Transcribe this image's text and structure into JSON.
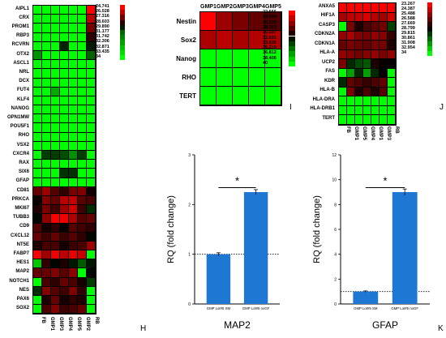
{
  "colors": {
    "green": "#00ff00",
    "red": "#ff0000",
    "black": "#000000",
    "bar": "#1f77d4"
  },
  "chart_data": [
    {
      "panel": "H",
      "type": "heatmap",
      "rows": [
        "AIPL1",
        "CRX",
        "PROM1",
        "RBP3",
        "RCVRN",
        "OTX2",
        "ASCL1",
        "NRL",
        "DCX",
        "FUT4",
        "KLF4",
        "NANOG",
        "OPN1MW",
        "POU5F1",
        "RHO",
        "VSX2",
        "CXCR4",
        "RAX",
        "SIX6",
        "GFAP",
        "CD81",
        "PRKCA",
        "MKI67",
        "TUBB3",
        "CD9",
        "CXCL12",
        "NT5E",
        "FABP7",
        "HES1",
        "MAP2",
        "NOTCH1",
        "NES",
        "PAX6",
        "SOX2"
      ],
      "columns": [
        "FB",
        "GMP1",
        "GMP3",
        "GMP4",
        "GMP5",
        "GMP2",
        "RB"
      ],
      "values": [
        [
          34,
          34,
          34,
          34,
          34,
          34,
          24.741
        ],
        [
          34,
          34,
          34,
          34,
          34,
          34,
          26.028
        ],
        [
          34,
          34,
          34,
          34,
          34,
          34,
          27.316
        ],
        [
          34,
          34,
          34,
          34,
          34,
          34,
          28.603
        ],
        [
          34,
          34,
          34,
          30.0,
          34,
          34,
          29.89
        ],
        [
          32.0,
          34,
          34,
          34,
          34,
          34,
          31.177
        ],
        [
          34,
          34,
          34,
          34,
          34,
          34,
          34
        ],
        [
          34,
          34,
          34,
          34,
          34,
          34,
          34
        ],
        [
          34,
          34,
          34,
          34,
          34,
          34,
          34
        ],
        [
          34,
          34,
          32.5,
          34,
          34,
          34,
          34
        ],
        [
          34,
          34,
          34,
          34,
          34,
          34,
          34
        ],
        [
          34,
          34,
          34,
          34,
          34,
          34,
          34
        ],
        [
          34,
          34,
          34,
          34,
          34,
          34,
          34
        ],
        [
          34,
          34,
          34,
          34,
          34,
          34,
          34
        ],
        [
          34,
          34,
          34,
          34,
          34,
          34,
          34
        ],
        [
          34,
          34,
          34,
          34,
          34,
          34,
          34
        ],
        [
          34,
          30.5,
          30.5,
          30.8,
          32.0,
          30.5,
          34
        ],
        [
          34,
          34,
          34,
          34,
          34,
          34,
          34
        ],
        [
          34,
          34,
          34,
          30.3,
          30.3,
          34,
          34
        ],
        [
          34,
          34,
          34,
          34,
          34,
          34,
          34
        ],
        [
          27.5,
          26.5,
          27.8,
          28.5,
          27.2,
          27.0,
          29.0
        ],
        [
          29.2,
          27.0,
          27.5,
          26.0,
          25.8,
          27.8,
          28.0
        ],
        [
          28.8,
          27.2,
          28.2,
          26.5,
          25.5,
          28.3,
          30.2
        ],
        [
          29.5,
          26.8,
          24.8,
          25.0,
          26.2,
          27.8,
          27.5
        ],
        [
          27.8,
          29.0,
          28.5,
          29.3,
          27.8,
          28.2,
          28.5
        ],
        [
          27.5,
          28.2,
          27.5,
          28.3,
          27.8,
          28.5,
          29.5
        ],
        [
          28.8,
          28.0,
          28.0,
          29.0,
          28.3,
          28.0,
          26.5
        ],
        [
          24.8,
          26.5,
          25.0,
          26.0,
          25.2,
          25.8,
          34
        ],
        [
          33.0,
          28.5,
          29.5,
          28.8,
          29.8,
          31.0,
          29.8
        ],
        [
          27.5,
          27.5,
          27.0,
          27.8,
          26.8,
          34,
          29.5
        ],
        [
          34,
          28.0,
          28.5,
          27.5,
          28.0,
          29.0,
          30.5
        ],
        [
          30.2,
          27.0,
          27.8,
          28.3,
          27.0,
          28.5,
          34
        ],
        [
          34,
          28.8,
          27.5,
          29.0,
          28.5,
          28.8,
          34
        ],
        [
          34,
          28.0,
          27.0,
          28.3,
          28.0,
          27.5,
          34
        ]
      ],
      "legend": [
        "24.741",
        "26.028",
        "27.316",
        "28.603",
        "29.890",
        "31.177",
        "31.742",
        "32.306",
        "32.871",
        "33.435",
        "34"
      ]
    },
    {
      "panel": "I",
      "type": "heatmap",
      "rows": [
        "Nestin",
        "Sox2",
        "Nanog",
        "RHO",
        "TERT"
      ],
      "columns": [
        "GMP1",
        "GMP2",
        "GMP3",
        "GMP4",
        "GMP5"
      ],
      "values": [
        [
          22.666,
          26.0,
          27.2,
          28.0,
          28.6
        ],
        [
          25.5,
          25.0,
          25.6,
          25.2,
          25.3
        ],
        [
          40,
          40,
          40,
          40,
          40
        ],
        [
          40,
          40,
          40,
          40,
          40
        ],
        [
          40,
          40,
          40,
          40,
          40
        ]
      ],
      "legend": [
        "22.666",
        "24.694",
        "26.528",
        "28.363",
        "30.197",
        "32.031",
        "33.625",
        "35.219",
        "36.812",
        "38.406",
        "40"
      ]
    },
    {
      "panel": "J",
      "type": "heatmap",
      "rows": [
        "ANXA5",
        "HIF1A",
        "CASP3",
        "CDKN2A",
        "CDKN1A",
        "HLA-A",
        "UCP2",
        "FAS",
        "KDR",
        "HLA-B",
        "HLA-DRA",
        "HLA-DRB1",
        "TERT"
      ],
      "columns": [
        "FB",
        "GMP1",
        "GMP5",
        "GMP4",
        "GMP1",
        "GMP3",
        "RB"
      ],
      "values": [
        [
          23.3,
          23.3,
          23.3,
          23.3,
          23.3,
          23.3,
          23.3
        ],
        [
          25.0,
          24.5,
          24.5,
          24.0,
          24.8,
          25.2,
          24.2
        ],
        [
          34,
          26.0,
          28.0,
          27.0,
          26.5,
          26.2,
          30.0
        ],
        [
          25.5,
          25.0,
          25.8,
          26.0,
          25.5,
          25.8,
          27.5
        ],
        [
          26.5,
          26.0,
          26.3,
          26.5,
          26.0,
          26.2,
          28.0
        ],
        [
          25.5,
          25.8,
          26.2,
          25.8,
          25.5,
          26.0,
          25.5
        ],
        [
          26.0,
          29.5,
          30.2,
          30.5,
          28.0,
          28.5,
          28.5
        ],
        [
          34,
          32.0,
          29.5,
          32.0,
          29.5,
          28.5,
          34
        ],
        [
          29.5,
          26.5,
          27.0,
          27.5,
          27.0,
          26.5,
          34
        ],
        [
          34,
          26.0,
          28.0,
          27.0,
          28.0,
          26.8,
          34
        ],
        [
          34,
          34,
          34,
          34,
          34,
          34,
          34
        ],
        [
          34,
          34,
          34,
          34,
          34,
          34,
          34
        ],
        [
          34,
          34,
          34,
          34,
          34,
          34,
          34
        ]
      ],
      "legend": [
        "23.267",
        "24.387",
        "25.488",
        "26.588",
        "27.669",
        "28.799",
        "29.815",
        "30.861",
        "31.908",
        "32.954",
        "34"
      ]
    },
    {
      "panel": "K-MAP2",
      "type": "bar",
      "categories": [
        "GMP Lot#5 SM",
        "GMP Lot#5 noGF"
      ],
      "values": [
        1.0,
        2.25
      ],
      "errors": [
        0.03,
        0.05
      ],
      "xlabel": "MAP2",
      "ylabel": "RQ (fold change)",
      "yticks": [
        "0",
        "1",
        "2",
        "3"
      ],
      "ylim": [
        0,
        3
      ],
      "significance": "*"
    },
    {
      "panel": "K-GFAP",
      "type": "bar",
      "categories": [
        "GMP Lot#5 SM",
        "GMP Lot#5 noGF"
      ],
      "values": [
        1.0,
        9.0
      ],
      "errors": [
        0.05,
        0.25
      ],
      "xlabel": "GFAP",
      "ylabel": "RQ (fold change)",
      "yticks": [
        "0",
        "2",
        "4",
        "6",
        "8",
        "10",
        "12"
      ],
      "ylim": [
        0,
        12
      ],
      "significance": "*"
    }
  ],
  "panel_letters": {
    "h": "H",
    "i": "I",
    "j": "J",
    "k": "K"
  }
}
